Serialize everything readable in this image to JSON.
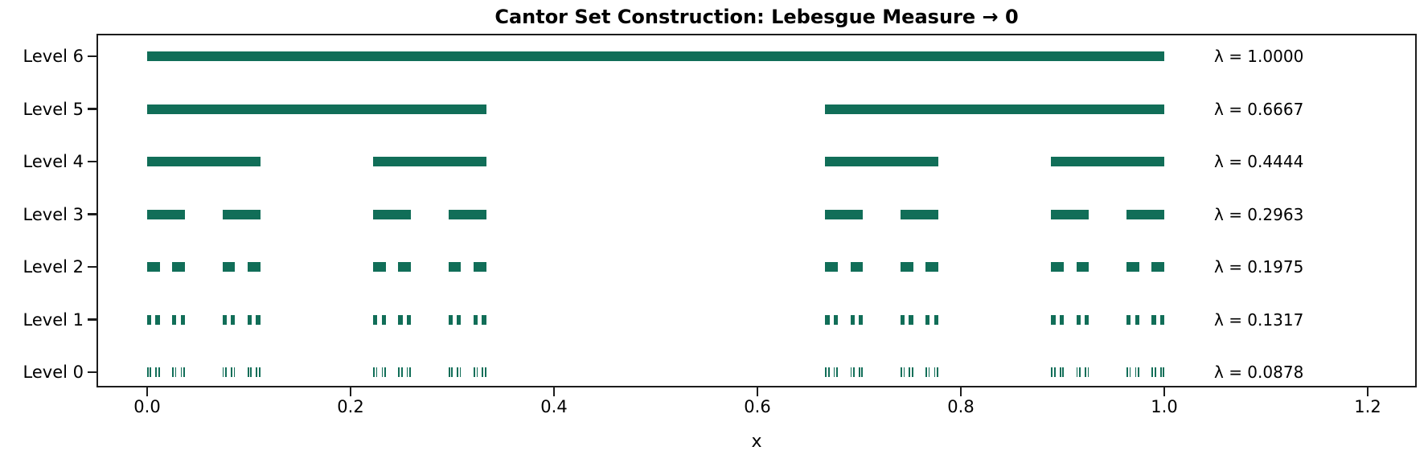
{
  "title": "Cantor Set Construction: Lebesgue Measure → 0",
  "xlabel": "x",
  "chart_data": {
    "type": "bar",
    "subtype": "horizontal-interval-rows",
    "title": "Cantor Set Construction: Lebesgue Measure → 0",
    "xlabel": "x",
    "xlim": [
      -0.05,
      1.25
    ],
    "grid": false,
    "legend": false,
    "bar_color": "#116e58",
    "x_ticks": {
      "labels": [
        "0.0",
        "0.2",
        "0.4",
        "0.6",
        "0.8",
        "1.0",
        "1.2"
      ],
      "values": [
        0.0,
        0.2,
        0.4,
        0.6,
        0.8,
        1.0,
        1.2
      ]
    },
    "levels": [
      {
        "label": "Level 6",
        "iteration": 0,
        "lambda": 1.0,
        "lambda_label": "λ = 1.0000",
        "num_intervals": 1,
        "denominator": 1,
        "interval_width_fraction": "1/1",
        "interval_start_numerators": [
          0
        ]
      },
      {
        "label": "Level 5",
        "iteration": 1,
        "lambda": 0.6667,
        "lambda_label": "λ = 0.6667",
        "num_intervals": 2,
        "denominator": 3,
        "interval_width_fraction": "1/3",
        "interval_start_numerators": [
          0,
          2
        ]
      },
      {
        "label": "Level 4",
        "iteration": 2,
        "lambda": 0.4444,
        "lambda_label": "λ = 0.4444",
        "num_intervals": 4,
        "denominator": 9,
        "interval_width_fraction": "1/9",
        "interval_start_numerators": [
          0,
          2,
          6,
          8
        ]
      },
      {
        "label": "Level 3",
        "iteration": 3,
        "lambda": 0.2963,
        "lambda_label": "λ = 0.2963",
        "num_intervals": 8,
        "denominator": 27,
        "interval_width_fraction": "1/27",
        "interval_start_numerators": [
          0,
          2,
          6,
          8,
          18,
          20,
          24,
          26
        ]
      },
      {
        "label": "Level 2",
        "iteration": 4,
        "lambda": 0.1975,
        "lambda_label": "λ = 0.1975",
        "num_intervals": 16,
        "denominator": 81,
        "interval_width_fraction": "1/81",
        "interval_start_numerators": [
          0,
          2,
          6,
          8,
          18,
          20,
          24,
          26,
          54,
          56,
          60,
          62,
          72,
          74,
          78,
          80
        ]
      },
      {
        "label": "Level 1",
        "iteration": 5,
        "lambda": 0.1317,
        "lambda_label": "λ = 0.1317",
        "num_intervals": 32,
        "denominator": 243,
        "interval_width_fraction": "1/243",
        "interval_start_numerators": [
          0,
          2,
          6,
          8,
          18,
          20,
          24,
          26,
          54,
          56,
          60,
          62,
          72,
          74,
          78,
          80,
          162,
          164,
          168,
          170,
          180,
          182,
          186,
          188,
          216,
          218,
          222,
          224,
          234,
          236,
          240,
          242
        ]
      },
      {
        "label": "Level 0",
        "iteration": 6,
        "lambda": 0.0878,
        "lambda_label": "λ = 0.0878",
        "num_intervals": 64,
        "denominator": 729,
        "interval_width_fraction": "1/729",
        "interval_start_numerators": [
          0,
          2,
          6,
          8,
          18,
          20,
          24,
          26,
          54,
          56,
          60,
          62,
          72,
          74,
          78,
          80,
          162,
          164,
          168,
          170,
          180,
          182,
          186,
          188,
          216,
          218,
          222,
          224,
          234,
          236,
          240,
          242,
          486,
          488,
          492,
          494,
          504,
          506,
          510,
          512,
          540,
          542,
          546,
          548,
          558,
          560,
          564,
          566,
          648,
          650,
          654,
          656,
          666,
          668,
          672,
          674,
          702,
          704,
          708,
          710,
          720,
          722,
          726,
          728
        ]
      }
    ]
  }
}
